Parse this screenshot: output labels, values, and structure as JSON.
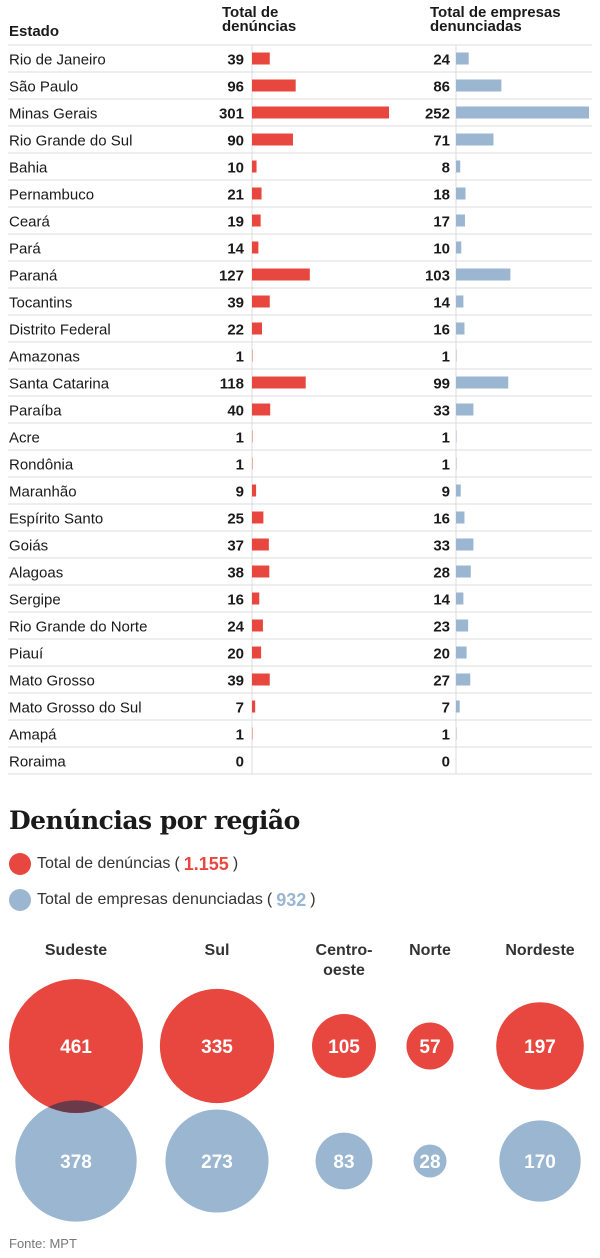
{
  "headers": {
    "estado": "Estado",
    "denuncias_line1": "Total de",
    "denuncias_line2": "denúncias",
    "empresas_line1": "Total de empresas",
    "empresas_line2": "denunciadas"
  },
  "colors": {
    "denuncias": "#e8473f",
    "empresas": "#9ab6d1",
    "row_divider": "#dcdcdc",
    "text": "#1a1a1a"
  },
  "chart_data": [
    {
      "type": "bar",
      "orientation": "horizontal",
      "categories": [
        "Rio de Janeiro",
        "São Paulo",
        "Minas Gerais",
        "Rio Grande do Sul",
        "Bahia",
        "Pernambuco",
        "Ceará",
        "Pará",
        "Paraná",
        "Tocantins",
        "Distrito Federal",
        "Amazonas",
        "Santa Catarina",
        "Paraíba",
        "Acre",
        "Rondônia",
        "Maranhão",
        "Espírito Santo",
        "Goiás",
        "Alagoas",
        "Sergipe",
        "Rio Grande do Norte",
        "Piauí",
        "Mato Grosso",
        "Mato Grosso do Sul",
        "Amapá",
        "Roraima"
      ],
      "series": [
        {
          "name": "Total de denúncias",
          "values": [
            39,
            96,
            301,
            90,
            10,
            21,
            19,
            14,
            127,
            39,
            22,
            1,
            118,
            40,
            1,
            1,
            9,
            25,
            37,
            38,
            16,
            24,
            20,
            39,
            7,
            1,
            0
          ]
        },
        {
          "name": "Total de empresas denunciadas",
          "values": [
            24,
            86,
            252,
            71,
            8,
            18,
            17,
            10,
            103,
            14,
            16,
            1,
            99,
            33,
            1,
            1,
            9,
            16,
            33,
            28,
            14,
            23,
            20,
            27,
            7,
            1,
            0
          ]
        }
      ],
      "data_labels": true,
      "grid": false
    },
    {
      "type": "bubble",
      "title": "Denúncias por região",
      "legend": [
        {
          "label": "Total de denúncias",
          "total": "1.155"
        },
        {
          "label": "Total de empresas denunciadas",
          "total": "932"
        }
      ],
      "regions": [
        {
          "name_lines": [
            "Sudeste"
          ],
          "denuncias": 461,
          "empresas": 378
        },
        {
          "name_lines": [
            "Sul"
          ],
          "denuncias": 335,
          "empresas": 273
        },
        {
          "name_lines": [
            "Centro-",
            "oeste"
          ],
          "denuncias": 105,
          "empresas": 83
        },
        {
          "name_lines": [
            "Norte"
          ],
          "denuncias": 57,
          "empresas": 28
        },
        {
          "name_lines": [
            "Nordeste"
          ],
          "denuncias": 197,
          "empresas": 170
        }
      ]
    }
  ],
  "source": "Fonte: MPT"
}
